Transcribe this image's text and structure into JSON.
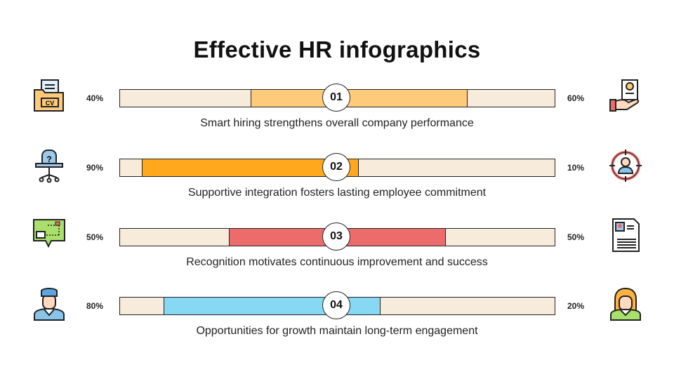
{
  "title": "Effective HR infographics",
  "colors": {
    "track": "#f7ebdb",
    "outline": "#222222"
  },
  "rows": [
    {
      "number": "01",
      "left_percent": "40%",
      "right_percent": "60%",
      "value": 40,
      "color": "#ffca7a",
      "caption": "Smart hiring strengthens overall company performance",
      "left_icon": "cv-folder-icon",
      "right_icon": "hand-holding-resume-icon"
    },
    {
      "number": "02",
      "left_percent": "90%",
      "right_percent": "10%",
      "value": 90,
      "color": "#ffa81e",
      "caption": "Supportive integration fosters lasting employee commitment",
      "left_icon": "office-chair-question-icon",
      "right_icon": "target-person-icon"
    },
    {
      "number": "03",
      "left_percent": "50%",
      "right_percent": "50%",
      "value": 50,
      "color": "#ec6b6b",
      "caption": "Recognition motivates continuous improvement and success",
      "left_icon": "career-path-chat-icon",
      "right_icon": "resume-document-icon"
    },
    {
      "number": "04",
      "left_percent": "80%",
      "right_percent": "20%",
      "value": 80,
      "color": "#87d8f3",
      "caption": "Opportunities for growth maintain long-term engagement",
      "left_icon": "male-employee-icon",
      "right_icon": "female-employee-icon"
    }
  ]
}
